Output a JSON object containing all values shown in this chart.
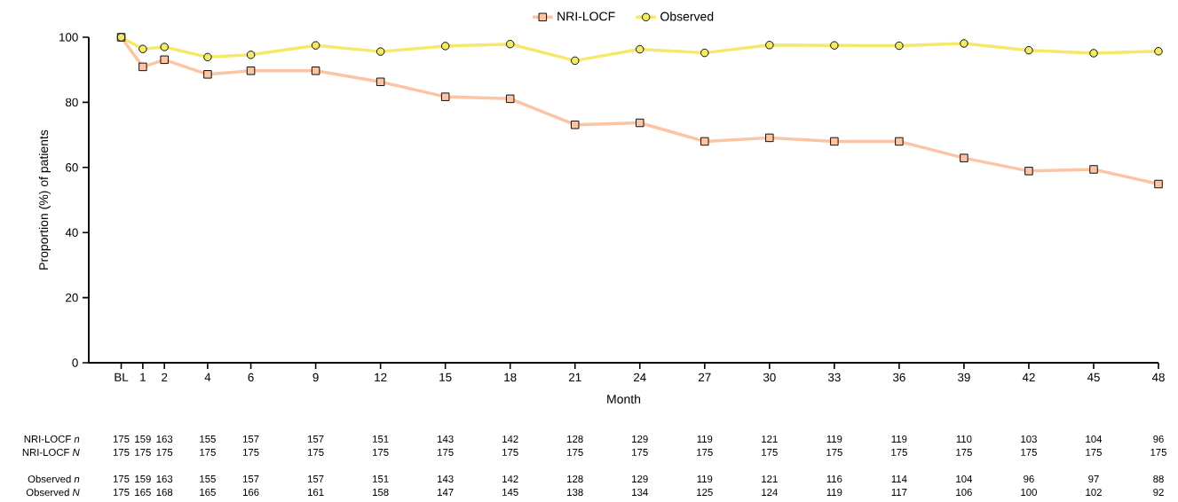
{
  "chart_data": {
    "type": "line",
    "xlabel": "Month",
    "ylabel": "Proportion (%) of patients",
    "x": [
      0,
      1,
      2,
      4,
      6,
      9,
      12,
      15,
      18,
      21,
      24,
      27,
      30,
      33,
      36,
      39,
      42,
      45,
      48
    ],
    "xlim": [
      -1.5,
      48
    ],
    "xticks": [
      {
        "value": 0,
        "label": "BL"
      },
      1,
      2,
      4,
      6,
      9,
      12,
      15,
      18,
      21,
      24,
      27,
      30,
      33,
      36,
      39,
      42,
      45,
      48
    ],
    "ylim": [
      0,
      100
    ],
    "yticks": [
      0,
      20,
      40,
      60,
      80,
      100
    ],
    "legend": "top",
    "line_style": "solid",
    "series": [
      {
        "name": "NRI-LOCF",
        "color": "#fbc4a4",
        "marker": "square",
        "values": [
          100,
          90.9,
          93.1,
          88.6,
          89.7,
          89.7,
          86.3,
          81.7,
          81.1,
          73.1,
          73.7,
          68.0,
          69.1,
          68.0,
          68.0,
          62.9,
          58.9,
          59.4,
          54.9
        ]
      },
      {
        "name": "Observed",
        "color": "#f5e96a",
        "marker": "circle",
        "values": [
          100,
          96.4,
          97.0,
          93.9,
          94.6,
          97.5,
          95.6,
          97.3,
          97.9,
          92.8,
          96.3,
          95.2,
          97.6,
          97.5,
          97.4,
          98.1,
          96.0,
          95.1,
          95.7
        ]
      }
    ],
    "annotations": [
      "NRI-LOCF *n*",
      "175",
      "159",
      "163",
      "155",
      "157",
      "157",
      "151",
      "143",
      "142",
      "128",
      "129",
      "119",
      "121",
      "119",
      "119",
      "110",
      "103",
      "104",
      "96",
      "NRI-LOCF *N*",
      "175",
      "175",
      "175",
      "175",
      "175",
      "175",
      "175",
      "175",
      "175",
      "175",
      "175",
      "175",
      "175",
      "175",
      "175",
      "175",
      "175",
      "175",
      "175",
      "Observed *n*",
      "175",
      "159",
      "163",
      "155",
      "157",
      "157",
      "151",
      "143",
      "142",
      "128",
      "129",
      "119",
      "121",
      "116",
      "114",
      "104",
      "96",
      "97",
      "88",
      "Observed *N*",
      "175",
      "165",
      "168",
      "165",
      "166",
      "161",
      "158",
      "147",
      "145",
      "138",
      "134",
      "125",
      "124",
      "119",
      "117",
      "106",
      "100",
      "102",
      "92"
    ]
  }
}
